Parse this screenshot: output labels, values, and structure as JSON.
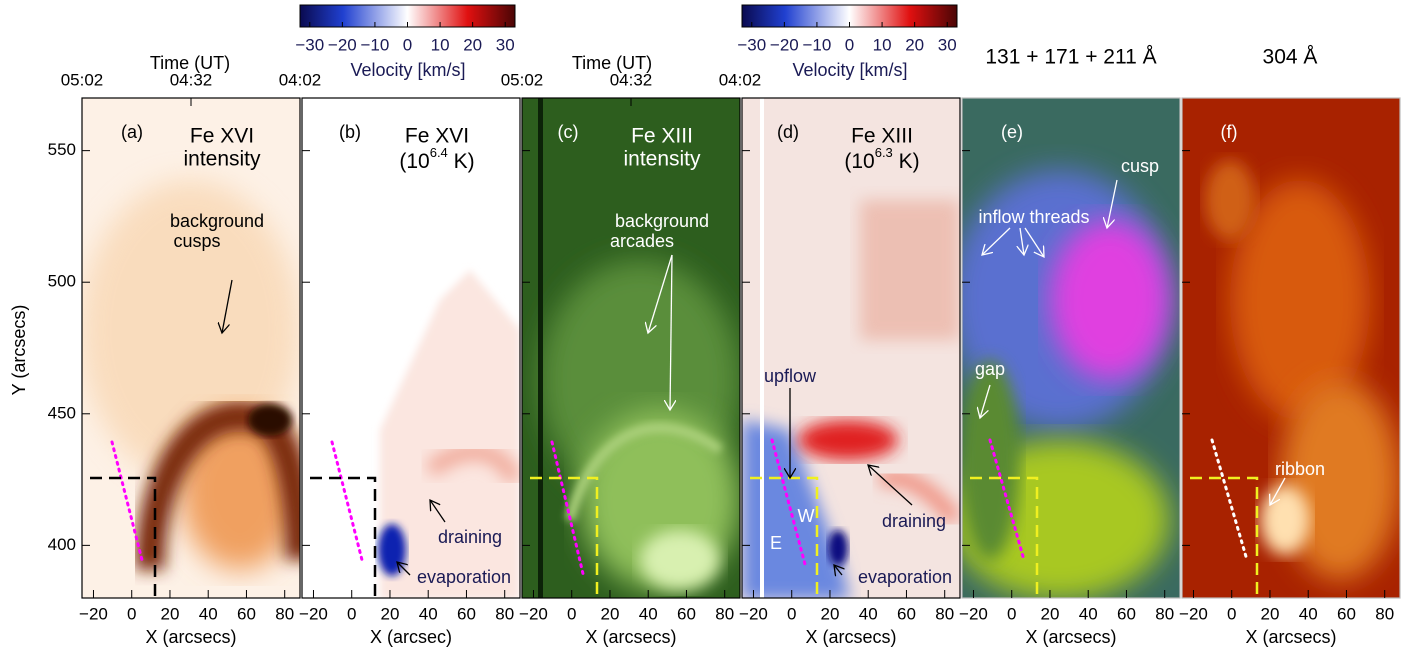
{
  "y_axis": {
    "label": "Y (arcsecs)",
    "lim": [
      380,
      570
    ],
    "ticks": [
      400,
      450,
      500,
      550
    ]
  },
  "x_axis": {
    "lim": [
      -26,
      88
    ],
    "ticks": [
      {
        "value": -20,
        "label": "−20"
      },
      0,
      20,
      40,
      60,
      80
    ]
  },
  "time_axis": {
    "label": "Time (UT)",
    "ticks": [
      "05:02",
      "04:32",
      "04:02"
    ]
  },
  "colorbar": {
    "label": "Velocity [km/s]",
    "lim": [
      -33,
      33
    ],
    "ticks": [
      {
        "value": -30,
        "label": "−30"
      },
      {
        "value": -20,
        "label": "−20"
      },
      {
        "value": -10,
        "label": "−10"
      },
      0,
      10,
      20,
      30
    ]
  },
  "headers": [
    "131 + 171 + 211 Å",
    "304 Å"
  ],
  "panels": [
    {
      "tag": "(a)",
      "x_label": "X (arcsecs)",
      "title": [
        "Fe XVI",
        "intensity"
      ],
      "annotations": [
        "background",
        "cusps"
      ]
    },
    {
      "tag": "(b)",
      "x_label": "X (arcsec)",
      "title": [
        "Fe XVI"
      ],
      "temperature": {
        "base": "(10",
        "exponent": "6.4",
        "unit": " K)"
      },
      "annotations": [
        "draining",
        "evaporation"
      ]
    },
    {
      "tag": "(c)",
      "x_label": "X (arcsecs)",
      "title": [
        "Fe XIII",
        "intensity"
      ],
      "annotations": [
        "background",
        "arcades"
      ]
    },
    {
      "tag": "(d)",
      "x_label": "X (arcsecs)",
      "title": [
        "Fe XIII"
      ],
      "temperature": {
        "base": "(10",
        "exponent": "6.3",
        "unit": " K)"
      },
      "annotations": [
        "upflow",
        "W",
        "E",
        "draining",
        "evaporation"
      ]
    },
    {
      "tag": "(e)",
      "x_label": "X (arcsecs)",
      "annotations": [
        "inflow threads",
        "cusp",
        "gap"
      ]
    },
    {
      "tag": "(f)",
      "x_label": "X (arcsecs)",
      "annotations": [
        "ribbon"
      ]
    }
  ]
}
